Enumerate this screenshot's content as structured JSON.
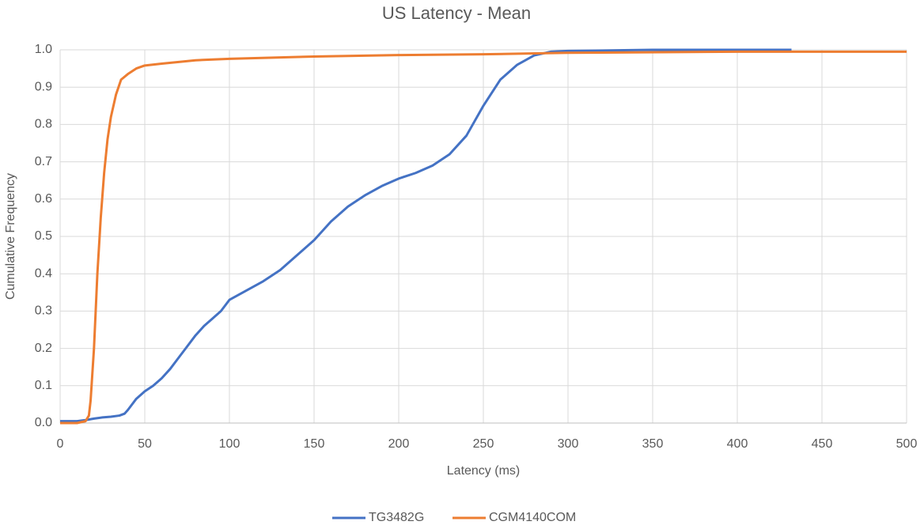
{
  "chart_data": {
    "type": "line",
    "title": "US Latency - Mean",
    "x_label": "Latency (ms)",
    "y_label": "Cumulative Frequency",
    "xlim": [
      0,
      500
    ],
    "xticks": [
      0,
      50,
      100,
      150,
      200,
      250,
      300,
      350,
      400,
      450,
      500
    ],
    "ylim": [
      0,
      1
    ],
    "yticks": [
      {
        "value": 0,
        "label": "0.0"
      },
      0.1,
      0.2,
      0.3,
      0.4,
      0.5,
      0.6,
      0.7,
      0.8,
      0.9,
      {
        "value": 1,
        "label": "1.0"
      }
    ],
    "grid": true,
    "legend": "bottom",
    "series": [
      {
        "name": "TG3482G",
        "color": "#4472c4",
        "x": [
          0,
          10,
          15,
          20,
          25,
          30,
          35,
          38,
          40,
          45,
          50,
          55,
          60,
          65,
          70,
          75,
          80,
          85,
          90,
          95,
          100,
          110,
          120,
          130,
          140,
          150,
          160,
          170,
          180,
          190,
          200,
          210,
          220,
          230,
          240,
          250,
          260,
          270,
          280,
          290,
          300,
          350,
          400,
          432
        ],
        "values": [
          0.005,
          0.005,
          0.008,
          0.012,
          0.015,
          0.017,
          0.02,
          0.025,
          0.035,
          0.065,
          0.085,
          0.1,
          0.12,
          0.145,
          0.175,
          0.205,
          0.235,
          0.26,
          0.28,
          0.3,
          0.33,
          0.355,
          0.38,
          0.41,
          0.45,
          0.49,
          0.54,
          0.58,
          0.61,
          0.635,
          0.655,
          0.67,
          0.69,
          0.72,
          0.77,
          0.85,
          0.92,
          0.96,
          0.985,
          0.995,
          0.997,
          1.0,
          1.0,
          1.0
        ]
      },
      {
        "name": "CGM4140COM",
        "color": "#ed7d31",
        "x": [
          0,
          10,
          15,
          17,
          18,
          20,
          22,
          24,
          26,
          28,
          30,
          33,
          36,
          40,
          45,
          50,
          60,
          80,
          100,
          150,
          200,
          250,
          300,
          400,
          500
        ],
        "values": [
          0.0,
          0.0,
          0.005,
          0.02,
          0.06,
          0.2,
          0.4,
          0.55,
          0.67,
          0.76,
          0.82,
          0.88,
          0.92,
          0.935,
          0.95,
          0.958,
          0.963,
          0.972,
          0.976,
          0.982,
          0.986,
          0.988,
          0.992,
          0.995,
          0.995
        ]
      }
    ]
  }
}
